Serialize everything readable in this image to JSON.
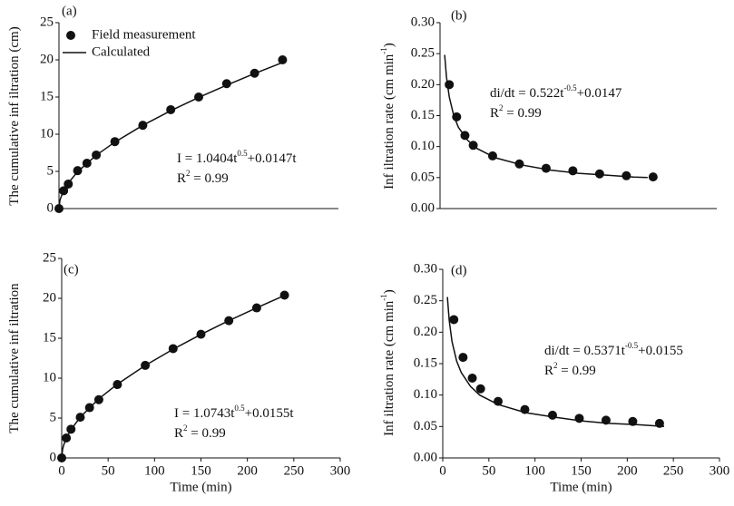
{
  "chart_data": [
    {
      "type": "line",
      "panel_label": "(a)",
      "y_label": [
        "The cumulative inf iltration (cm)"
      ],
      "xlim": [
        0,
        300
      ],
      "ylim": [
        0,
        25
      ],
      "yticks": [
        0,
        5,
        10,
        15,
        20,
        25
      ],
      "legend": "upper left",
      "annotation": [
        [
          "I = 1.0404t",
          {
            "sup": "0.5"
          },
          "+0.0147t"
        ],
        [
          "R",
          {
            "sup": "2"
          },
          " = 0.99"
        ]
      ],
      "series": [
        {
          "name": "Field measurement",
          "mode": "markers",
          "color": "#111111",
          "x": [
            0,
            5,
            10,
            20,
            30,
            40,
            60,
            90,
            120,
            150,
            180,
            210,
            240
          ],
          "values": [
            0,
            2.4,
            3.3,
            5.1,
            6.1,
            7.2,
            9.0,
            11.2,
            13.3,
            15.0,
            16.8,
            18.2,
            20.0
          ]
        },
        {
          "name": "Calculated",
          "mode": "line",
          "color": "#111111",
          "x": [
            0,
            1,
            2,
            5,
            10,
            20,
            40,
            60,
            90,
            120,
            150,
            180,
            210,
            240
          ],
          "values": [
            0,
            1.06,
            1.5,
            2.4,
            3.44,
            4.95,
            7.17,
            8.94,
            11.19,
            13.16,
            14.95,
            16.6,
            18.16,
            19.65
          ]
        }
      ]
    },
    {
      "type": "line",
      "panel_label": "(b)",
      "y_label": [
        "Inf iltration rate (cm min",
        {
          "sup": "-1"
        },
        ")"
      ],
      "xlim": [
        0,
        300
      ],
      "ylim": [
        0,
        0.3
      ],
      "yticks": [
        {
          "value": 0,
          "label": "0.00"
        },
        {
          "value": 0.05,
          "label": "0.05"
        },
        {
          "value": 0.1,
          "label": "0.10"
        },
        {
          "value": 0.15,
          "label": "0.15"
        },
        {
          "value": 0.2,
          "label": "0.20"
        },
        {
          "value": 0.25,
          "label": "0.25"
        },
        {
          "value": 0.3,
          "label": "0.30"
        }
      ],
      "annotation": [
        [
          "di/dt = 0.522t",
          {
            "sup": "-0.5"
          },
          "+0.0147"
        ],
        [
          "R",
          {
            "sup": "2"
          },
          " = 0.99"
        ]
      ],
      "series": [
        {
          "mode": "markers",
          "color": "#111111",
          "x": [
            10,
            18,
            27,
            36,
            57,
            86,
            115,
            144,
            173,
            202,
            231
          ],
          "values": [
            0.2,
            0.148,
            0.118,
            0.102,
            0.085,
            0.072,
            0.065,
            0.061,
            0.056,
            0.053,
            0.051
          ]
        },
        {
          "mode": "line",
          "color": "#111111",
          "x": [
            5,
            7,
            10,
            15,
            20,
            30,
            40,
            60,
            90,
            120,
            150,
            180,
            210,
            225
          ],
          "values": [
            0.248,
            0.212,
            0.18,
            0.149,
            0.131,
            0.11,
            0.097,
            0.082,
            0.07,
            0.062,
            0.057,
            0.054,
            0.051,
            0.05
          ]
        }
      ]
    },
    {
      "type": "line",
      "panel_label": "(c)",
      "y_label": [
        "The cumulative inf iltration"
      ],
      "x_label": "Time (min)",
      "xlim": [
        0,
        300
      ],
      "xticks": [
        0,
        50,
        100,
        150,
        200,
        250,
        300
      ],
      "ylim": [
        0,
        25
      ],
      "yticks": [
        0,
        5,
        10,
        15,
        20,
        25
      ],
      "annotation": [
        [
          "I = 1.0743t",
          {
            "sup": "0.5"
          },
          "+0.0155t"
        ],
        [
          "R",
          {
            "sup": "2"
          },
          " = 0.99"
        ]
      ],
      "series": [
        {
          "mode": "markers",
          "color": "#111111",
          "x": [
            0,
            5,
            10,
            20,
            30,
            40,
            60,
            90,
            120,
            150,
            180,
            210,
            240
          ],
          "values": [
            0,
            2.5,
            3.6,
            5.1,
            6.3,
            7.3,
            9.2,
            11.6,
            13.7,
            15.5,
            17.2,
            18.8,
            20.4
          ]
        },
        {
          "mode": "line",
          "color": "#111111",
          "x": [
            0,
            1,
            2,
            5,
            10,
            20,
            40,
            60,
            90,
            120,
            150,
            180,
            210,
            240
          ],
          "values": [
            0,
            1.09,
            1.55,
            2.48,
            3.55,
            5.11,
            7.41,
            9.25,
            11.59,
            13.63,
            15.48,
            17.2,
            18.82,
            20.36
          ]
        }
      ]
    },
    {
      "type": "line",
      "panel_label": "(d)",
      "y_label": [
        "Inf iltration rate (cm min",
        {
          "sup": "-1"
        },
        ")"
      ],
      "x_label": "Time (min)",
      "xlim": [
        0,
        300
      ],
      "xticks": [
        0,
        50,
        100,
        150,
        200,
        250,
        300
      ],
      "ylim": [
        0,
        0.3
      ],
      "yticks": [
        {
          "value": 0,
          "label": "0.00"
        },
        {
          "value": 0.05,
          "label": "0.05"
        },
        {
          "value": 0.1,
          "label": "0.10"
        },
        {
          "value": 0.15,
          "label": "0.15"
        },
        {
          "value": 0.2,
          "label": "0.20"
        },
        {
          "value": 0.25,
          "label": "0.25"
        },
        {
          "value": 0.3,
          "label": "0.30"
        }
      ],
      "annotation": [
        [
          "di/dt = 0.5371t",
          {
            "sup": "-0.5"
          },
          "+0.0155"
        ],
        [
          "R",
          {
            "sup": "2"
          },
          " = 0.99"
        ]
      ],
      "series": [
        {
          "mode": "markers",
          "color": "#111111",
          "x": [
            12,
            22,
            32,
            41,
            60,
            89,
            119,
            148,
            177,
            206,
            235
          ],
          "values": [
            0.22,
            0.16,
            0.127,
            0.11,
            0.09,
            0.077,
            0.068,
            0.063,
            0.06,
            0.058,
            0.055
          ]
        },
        {
          "mode": "line",
          "color": "#111111",
          "x": [
            5,
            7,
            10,
            15,
            20,
            30,
            40,
            60,
            90,
            120,
            150,
            180,
            210,
            240
          ],
          "values": [
            0.256,
            0.219,
            0.185,
            0.154,
            0.136,
            0.114,
            0.1,
            0.085,
            0.072,
            0.065,
            0.059,
            0.055,
            0.053,
            0.05
          ]
        }
      ]
    }
  ]
}
